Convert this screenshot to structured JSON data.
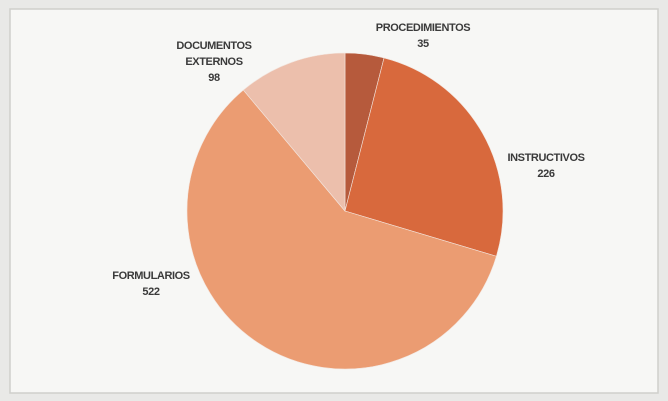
{
  "chart_data": {
    "type": "pie",
    "categories": [
      "PROCEDIMIENTOS",
      "INSTRUCTIVOS",
      "FORMULARIOS",
      "DOCUMENTOS EXTERNOS"
    ],
    "values": [
      35,
      226,
      522,
      98
    ],
    "colors": [
      "#b65a3c",
      "#d8693d",
      "#eb9c72",
      "#ecbfac"
    ]
  }
}
